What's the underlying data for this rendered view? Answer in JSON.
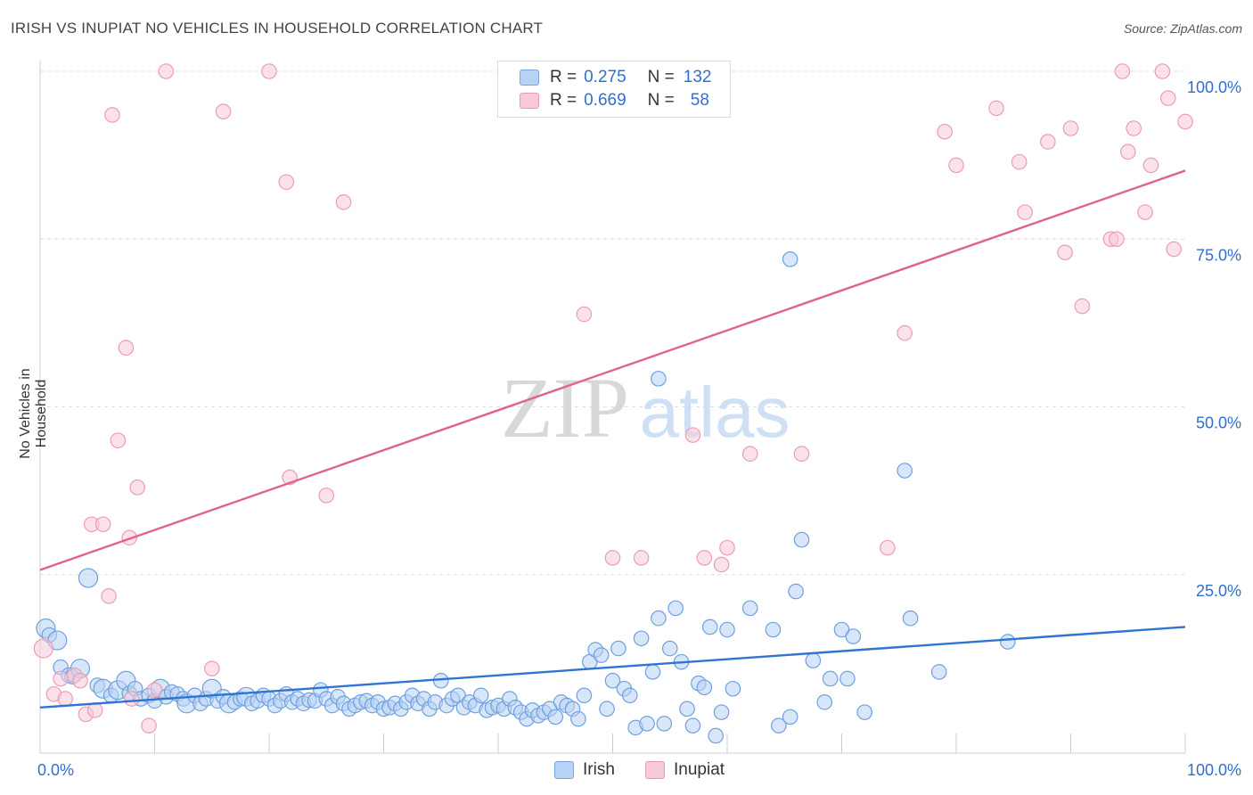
{
  "title": "IRISH VS INUPIAT NO VEHICLES IN HOUSEHOLD CORRELATION CHART",
  "source": "Source: ZipAtlas.com",
  "watermark": {
    "zip": "ZIP",
    "atlas": "atlas"
  },
  "legend": {
    "rows": [
      {
        "r_label": "R =",
        "r_value": "0.275",
        "n_label": "N =",
        "n_value": "132"
      },
      {
        "r_label": "R =",
        "r_value": "0.669",
        "n_label": "N =",
        "n_value": "58"
      }
    ]
  },
  "bottom_legend": {
    "irish": "Irish",
    "inupiat": "Inupiat"
  },
  "colors": {
    "irish_fill": "#b8d2f4",
    "irish_stroke": "#6e9fe0",
    "irish_line": "#2f74d0",
    "inupiat_fill": "#f8cad8",
    "inupiat_stroke": "#ec9bb5",
    "inupiat_line": "#e0638c",
    "tick_label": "#2f6fd0",
    "grid": "#dddddd"
  },
  "chart_data": {
    "type": "scatter",
    "title": "IRISH VS INUPIAT NO VEHICLES IN HOUSEHOLD CORRELATION CHART",
    "xlabel": "",
    "ylabel": "No Vehicles in Household",
    "xlim": [
      0,
      100
    ],
    "ylim": [
      0,
      100
    ],
    "x_tick_labels": [
      "0.0%",
      "100.0%"
    ],
    "y_tick_labels": [
      "25.0%",
      "50.0%",
      "75.0%",
      "100.0%"
    ],
    "y_ticks": [
      25,
      50,
      75,
      100
    ],
    "series": [
      {
        "name": "Irish",
        "R": 0.275,
        "N": 132,
        "trend": {
          "x": [
            0,
            100
          ],
          "y": [
            5.2,
            17.2
          ]
        },
        "points": [
          [
            0.5,
            17.0,
            2
          ],
          [
            0.8,
            16.0,
            1
          ],
          [
            1.5,
            15.2,
            2
          ],
          [
            1.8,
            11.2,
            1
          ],
          [
            2.5,
            10.0,
            1
          ],
          [
            2.8,
            9.8,
            1
          ],
          [
            3.5,
            11.0,
            2
          ],
          [
            4.2,
            24.5,
            2
          ],
          [
            5.0,
            8.5,
            1
          ],
          [
            5.5,
            8.0,
            2
          ],
          [
            6.2,
            7.0,
            1
          ],
          [
            6.8,
            7.8,
            2
          ],
          [
            7.5,
            9.2,
            2
          ],
          [
            7.8,
            7.3,
            1
          ],
          [
            8.3,
            8.0,
            1
          ],
          [
            8.8,
            6.5,
            1
          ],
          [
            9.5,
            7.0,
            1
          ],
          [
            10.0,
            6.2,
            1
          ],
          [
            10.5,
            8.0,
            2
          ],
          [
            11.0,
            6.8,
            1
          ],
          [
            11.5,
            7.5,
            1
          ],
          [
            12.0,
            7.2,
            1
          ],
          [
            12.5,
            6.5,
            1
          ],
          [
            12.8,
            5.8,
            2
          ],
          [
            13.5,
            7.0,
            1
          ],
          [
            14.0,
            5.8,
            1
          ],
          [
            14.5,
            6.5,
            1
          ],
          [
            15.0,
            8.0,
            2
          ],
          [
            15.5,
            6.2,
            1
          ],
          [
            16.0,
            6.8,
            1
          ],
          [
            16.5,
            5.8,
            2
          ],
          [
            17.0,
            6.0,
            1
          ],
          [
            17.5,
            6.5,
            1
          ],
          [
            18.0,
            6.8,
            2
          ],
          [
            18.5,
            5.8,
            1
          ],
          [
            19.0,
            6.2,
            1
          ],
          [
            19.5,
            7.0,
            1
          ],
          [
            20.0,
            6.5,
            1
          ],
          [
            20.5,
            5.5,
            1
          ],
          [
            21.0,
            6.2,
            1
          ],
          [
            21.5,
            7.2,
            1
          ],
          [
            22.0,
            6.0,
            1
          ],
          [
            22.5,
            6.5,
            1
          ],
          [
            23.0,
            5.8,
            1
          ],
          [
            23.5,
            6.3,
            1
          ],
          [
            24.0,
            6.2,
            1
          ],
          [
            24.5,
            7.8,
            1
          ],
          [
            25.0,
            6.5,
            1
          ],
          [
            25.5,
            5.5,
            1
          ],
          [
            26.0,
            6.8,
            1
          ],
          [
            26.5,
            5.8,
            1
          ],
          [
            27.0,
            5.0,
            1
          ],
          [
            27.5,
            5.5,
            1
          ],
          [
            28.0,
            6.0,
            1
          ],
          [
            28.5,
            6.2,
            1
          ],
          [
            29.0,
            5.5,
            1
          ],
          [
            29.5,
            6.0,
            1
          ],
          [
            30.0,
            5.0,
            1
          ],
          [
            30.5,
            5.2,
            1
          ],
          [
            31.0,
            5.8,
            1
          ],
          [
            31.5,
            5.0,
            1
          ],
          [
            32.0,
            6.0,
            1
          ],
          [
            32.5,
            7.0,
            1
          ],
          [
            33.0,
            5.8,
            1
          ],
          [
            33.5,
            6.5,
            1
          ],
          [
            34.0,
            5.0,
            1
          ],
          [
            34.5,
            6.0,
            1
          ],
          [
            35.0,
            9.2,
            1
          ],
          [
            35.5,
            5.5,
            1
          ],
          [
            36.0,
            6.5,
            1
          ],
          [
            36.5,
            7.0,
            1
          ],
          [
            37.0,
            5.2,
            1
          ],
          [
            37.5,
            6.0,
            1
          ],
          [
            38.0,
            5.5,
            1
          ],
          [
            38.5,
            7.0,
            1
          ],
          [
            39.0,
            4.8,
            1
          ],
          [
            39.5,
            5.2,
            1
          ],
          [
            40.0,
            5.5,
            1
          ],
          [
            40.5,
            5.0,
            1
          ],
          [
            41.0,
            6.5,
            1
          ],
          [
            41.5,
            5.2,
            1
          ],
          [
            42.0,
            4.5,
            1
          ],
          [
            42.5,
            3.5,
            1
          ],
          [
            43.0,
            4.8,
            1
          ],
          [
            43.5,
            4.0,
            1
          ],
          [
            44.0,
            4.5,
            1
          ],
          [
            44.5,
            5.0,
            1
          ],
          [
            45.0,
            3.8,
            1
          ],
          [
            45.5,
            6.0,
            1
          ],
          [
            46.0,
            5.5,
            1
          ],
          [
            46.5,
            5.0,
            1
          ],
          [
            47.0,
            3.5,
            1
          ],
          [
            47.5,
            7.0,
            1
          ],
          [
            48.0,
            12.0,
            1
          ],
          [
            48.5,
            13.8,
            1
          ],
          [
            49.0,
            13.0,
            1
          ],
          [
            49.5,
            5.0,
            1
          ],
          [
            50.0,
            9.2,
            1
          ],
          [
            50.5,
            14.0,
            1
          ],
          [
            51.0,
            8.0,
            1
          ],
          [
            51.5,
            7.0,
            1
          ],
          [
            52.0,
            2.2,
            1
          ],
          [
            52.5,
            15.5,
            1
          ],
          [
            53.0,
            2.8,
            1
          ],
          [
            53.5,
            10.5,
            1
          ],
          [
            54.0,
            18.5,
            1
          ],
          [
            54.5,
            2.8,
            1
          ],
          [
            55.0,
            14.0,
            1
          ],
          [
            55.5,
            20.0,
            1
          ],
          [
            56.0,
            12.0,
            1
          ],
          [
            56.5,
            5.0,
            1
          ],
          [
            57.0,
            2.5,
            1
          ],
          [
            57.5,
            8.8,
            1
          ],
          [
            58.0,
            8.2,
            1
          ],
          [
            58.5,
            17.2,
            1
          ],
          [
            59.0,
            1.0,
            1
          ],
          [
            59.5,
            4.5,
            1
          ],
          [
            60.0,
            16.8,
            1
          ],
          [
            60.5,
            8.0,
            1
          ],
          [
            62.0,
            20.0,
            1
          ],
          [
            64.0,
            16.8,
            1
          ],
          [
            67.5,
            12.2,
            1
          ],
          [
            64.5,
            2.5,
            1
          ],
          [
            65.5,
            3.8,
            1
          ],
          [
            66.0,
            22.5,
            1
          ],
          [
            68.5,
            6.0,
            1
          ],
          [
            69.0,
            9.5,
            1
          ],
          [
            70.0,
            16.8,
            1
          ],
          [
            70.5,
            9.5,
            1
          ],
          [
            71.0,
            15.8,
            1
          ],
          [
            72.0,
            4.5,
            1
          ],
          [
            76.0,
            18.5,
            1
          ],
          [
            78.5,
            10.5,
            1
          ],
          [
            84.5,
            15.0,
            1
          ],
          [
            66.5,
            30.2,
            1
          ],
          [
            75.5,
            40.5,
            1
          ],
          [
            54.0,
            54.2,
            1
          ],
          [
            65.5,
            72.0,
            1
          ]
        ]
      },
      {
        "name": "Inupiat",
        "R": 0.669,
        "N": 58,
        "trend": {
          "x": [
            0,
            100
          ],
          "y": [
            25.7,
            85.2
          ]
        },
        "points": [
          [
            0.3,
            14.0,
            2
          ],
          [
            1.2,
            7.2,
            1
          ],
          [
            1.8,
            9.5,
            1
          ],
          [
            2.2,
            6.5,
            1
          ],
          [
            3.0,
            10.0,
            1
          ],
          [
            3.5,
            9.2,
            1
          ],
          [
            4.0,
            4.2,
            1
          ],
          [
            4.5,
            32.5,
            1
          ],
          [
            4.8,
            4.8,
            1
          ],
          [
            5.5,
            32.5,
            1
          ],
          [
            6.0,
            21.8,
            1
          ],
          [
            6.3,
            93.5,
            1
          ],
          [
            6.8,
            45.0,
            1
          ],
          [
            7.5,
            58.8,
            1
          ],
          [
            7.8,
            30.5,
            1
          ],
          [
            8.0,
            6.5,
            1
          ],
          [
            8.5,
            38.0,
            1
          ],
          [
            9.5,
            2.5,
            1
          ],
          [
            10.0,
            7.8,
            1
          ],
          [
            11.0,
            100.0,
            1
          ],
          [
            15.0,
            11.0,
            1
          ],
          [
            16.0,
            94.0,
            1
          ],
          [
            20.0,
            100.0,
            1
          ],
          [
            21.5,
            83.5,
            1
          ],
          [
            21.8,
            39.5,
            1
          ],
          [
            25.0,
            36.8,
            1
          ],
          [
            26.5,
            80.5,
            1
          ],
          [
            47.5,
            63.8,
            1
          ],
          [
            50.0,
            27.5,
            1
          ],
          [
            52.5,
            27.5,
            1
          ],
          [
            57.0,
            45.8,
            1
          ],
          [
            58.0,
            27.5,
            1
          ],
          [
            59.5,
            26.5,
            1
          ],
          [
            62.0,
            43.0,
            1
          ],
          [
            66.5,
            43.0,
            1
          ],
          [
            74.0,
            29.0,
            1
          ],
          [
            75.5,
            61.0,
            1
          ],
          [
            79.0,
            91.0,
            1
          ],
          [
            80.0,
            86.0,
            1
          ],
          [
            83.5,
            94.5,
            1
          ],
          [
            85.5,
            86.5,
            1
          ],
          [
            86.0,
            79.0,
            1
          ],
          [
            88.0,
            89.5,
            1
          ],
          [
            89.5,
            73.0,
            1
          ],
          [
            90.0,
            91.5,
            1
          ],
          [
            91.0,
            65.0,
            1
          ],
          [
            93.5,
            75.0,
            1
          ],
          [
            94.0,
            75.0,
            1
          ],
          [
            94.5,
            100.0,
            1
          ],
          [
            95.0,
            88.0,
            1
          ],
          [
            95.5,
            91.5,
            1
          ],
          [
            96.5,
            79.0,
            1
          ],
          [
            97.0,
            86.0,
            1
          ],
          [
            98.0,
            100.0,
            1
          ],
          [
            98.5,
            96.0,
            1
          ],
          [
            99.0,
            73.5,
            1
          ],
          [
            100.0,
            92.5,
            1
          ],
          [
            60.0,
            29.0,
            1
          ]
        ]
      }
    ]
  }
}
